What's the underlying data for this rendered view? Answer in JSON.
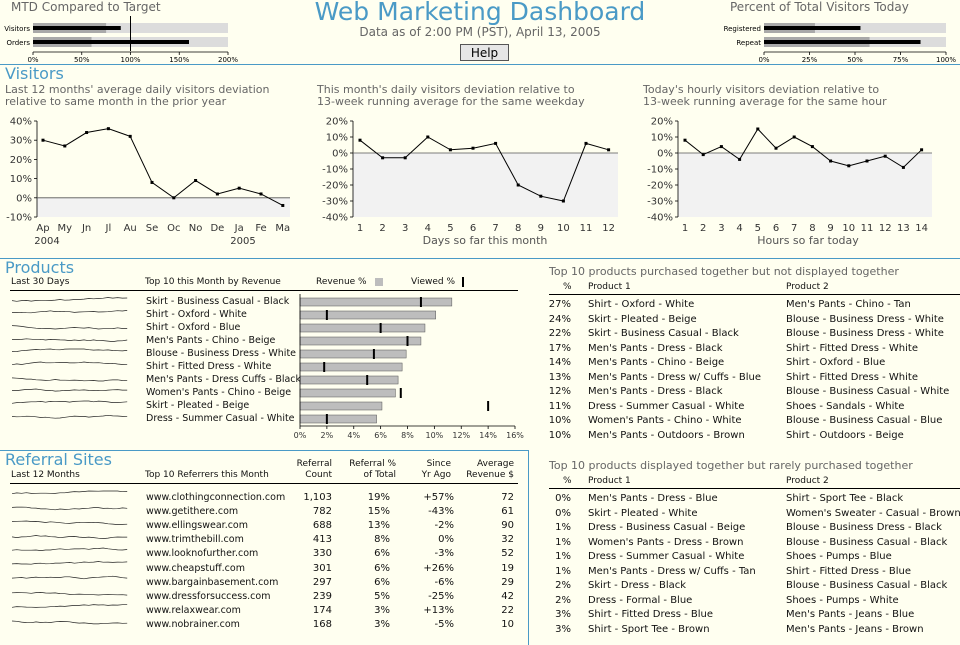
{
  "header": {
    "title": "Web Marketing Dashboard",
    "subtitle": "Data as of 2:00 PM (PST), April 13, 2005",
    "help_label": "Help"
  },
  "mtd": {
    "title": "MTD Compared to Target",
    "rows": [
      "Visitors",
      "Orders"
    ],
    "ticks": [
      "0%",
      "50%",
      "100%",
      "150%",
      "200%"
    ]
  },
  "pct_visitors": {
    "title": "Percent of Total Visitors Today",
    "rows": [
      "Registered",
      "Repeat"
    ],
    "ticks": [
      "0%",
      "25%",
      "50%",
      "75%",
      "100%"
    ]
  },
  "visitors": {
    "title": "Visitors",
    "chart1": {
      "desc_line1": "Last 12 months' average daily visitors deviation",
      "desc_line2": "relative to same month in the prior year",
      "years": [
        "2004",
        "2005"
      ]
    },
    "chart2": {
      "desc_line1": "This month's daily visitors deviation relative to",
      "desc_line2": "13-week running average for the same weekday",
      "xlabel": "Days so far this month"
    },
    "chart3": {
      "desc_line1": "Today's hourly visitors deviation relative to",
      "desc_line2": "13-week running average for the same hour",
      "xlabel": "Hours so far today"
    }
  },
  "products": {
    "title": "Products",
    "spark_header": "Last 30 Days",
    "list_header": "Top 10 this Month by Revenue",
    "legend_revenue": "Revenue %",
    "legend_viewed": "Viewed %",
    "ticks": [
      "0%",
      "2%",
      "4%",
      "6%",
      "8%",
      "10%",
      "12%",
      "14%",
      "16%"
    ]
  },
  "together_not_displayed": {
    "title": "Top 10 products purchased together but not displayed together",
    "col_pct": "%",
    "col_p1": "Product 1",
    "col_p2": "Product 2",
    "rows": [
      {
        "pct": "27%",
        "p1": "Shirt - Oxford - White",
        "p2": "Men's Pants - Chino - Tan"
      },
      {
        "pct": "24%",
        "p1": "Skirt - Pleated - Beige",
        "p2": "Blouse - Business Dress - White"
      },
      {
        "pct": "22%",
        "p1": "Skirt - Business Casual - Black",
        "p2": "Blouse - Business Dress - White"
      },
      {
        "pct": "17%",
        "p1": "Men's Pants - Dress - Black",
        "p2": "Shirt - Fitted Dress - White"
      },
      {
        "pct": "14%",
        "p1": "Men's Pants - Chino - Beige",
        "p2": "Shirt - Oxford - Blue"
      },
      {
        "pct": "13%",
        "p1": "Men's Pants - Dress w/ Cuffs - Blue",
        "p2": "Shirt - Fitted Dress - White"
      },
      {
        "pct": "12%",
        "p1": "Men's Pants - Dress - Black",
        "p2": "Blouse - Business Casual - White"
      },
      {
        "pct": "11%",
        "p1": "Dress - Summer Casual - White",
        "p2": "Shoes - Sandals - White"
      },
      {
        "pct": "10%",
        "p1": "Women's Pants - Chino - White",
        "p2": "Blouse - Business Casual - Blue"
      },
      {
        "pct": "10%",
        "p1": "Men's Pants - Outdoors - Brown",
        "p2": "Shirt - Outdoors - Beige"
      }
    ]
  },
  "displayed_rarely_purchased": {
    "title": "Top 10 products displayed together but rarely purchased together",
    "col_pct": "%",
    "col_p1": "Product 1",
    "col_p2": "Product 2",
    "rows": [
      {
        "pct": "0%",
        "p1": "Men's Pants - Dress - Blue",
        "p2": "Shirt - Sport Tee - Black"
      },
      {
        "pct": "0%",
        "p1": "Skirt - Pleated - White",
        "p2": "Women's Sweater - Casual - Brown"
      },
      {
        "pct": "1%",
        "p1": "Dress - Business Casual - Beige",
        "p2": "Blouse - Business Dress - Black"
      },
      {
        "pct": "1%",
        "p1": "Women's Pants - Dress - Brown",
        "p2": "Blouse - Business Casual - Black"
      },
      {
        "pct": "1%",
        "p1": "Dress - Summer Casual - White",
        "p2": "Shoes - Pumps - Blue"
      },
      {
        "pct": "1%",
        "p1": "Men's Pants - Dress w/ Cuffs - Tan",
        "p2": "Shirt - Fitted Dress - Blue"
      },
      {
        "pct": "2%",
        "p1": "Skirt - Dress - Black",
        "p2": "Blouse - Business Casual - Black"
      },
      {
        "pct": "2%",
        "p1": "Dress - Formal - Blue",
        "p2": "Shoes - Pumps - White"
      },
      {
        "pct": "3%",
        "p1": "Shirt - Fitted Dress - Blue",
        "p2": "Men's Pants - Jeans - Blue"
      },
      {
        "pct": "3%",
        "p1": "Shirt - Sport Tee - Brown",
        "p2": "Men's Pants - Jeans - Brown"
      }
    ]
  },
  "referrals": {
    "title": "Referral Sites",
    "spark_header": "Last 12 Months",
    "col_site": "Top 10 Referrers this Month",
    "col_count_1": "Referral",
    "col_count_2": "Count",
    "col_pct_1": "Referral %",
    "col_pct_2": "of Total",
    "col_since_1": "Since",
    "col_since_2": "Yr Ago",
    "col_rev_1": "Average",
    "col_rev_2": "Revenue $",
    "rows": [
      {
        "site": "www.clothingconnection.com",
        "count": "1,103",
        "pct": "19%",
        "since": "+57%",
        "rev": "72"
      },
      {
        "site": "www.getithere.com",
        "count": "782",
        "pct": "15%",
        "since": "-43%",
        "rev": "61"
      },
      {
        "site": "www.ellingswear.com",
        "count": "688",
        "pct": "13%",
        "since": "-2%",
        "rev": "90"
      },
      {
        "site": "www.trimthebill.com",
        "count": "413",
        "pct": "8%",
        "since": "0%",
        "rev": "32"
      },
      {
        "site": "www.looknofurther.com",
        "count": "330",
        "pct": "6%",
        "since": "-3%",
        "rev": "52"
      },
      {
        "site": "www.cheapstuff.com",
        "count": "301",
        "pct": "6%",
        "since": "+26%",
        "rev": "19"
      },
      {
        "site": "www.bargainbasement.com",
        "count": "297",
        "pct": "6%",
        "since": "-6%",
        "rev": "29"
      },
      {
        "site": "www.dressforsuccess.com",
        "count": "239",
        "pct": "5%",
        "since": "-25%",
        "rev": "42"
      },
      {
        "site": "www.relaxwear.com",
        "count": "174",
        "pct": "3%",
        "since": "+13%",
        "rev": "22"
      },
      {
        "site": "www.nobrainer.com",
        "count": "168",
        "pct": "3%",
        "since": "-5%",
        "rev": "10"
      }
    ]
  },
  "colors": {
    "accent": "#4a9ac6",
    "background": "#fffff0",
    "band": "#cccccc",
    "bar_gray": "#bdbdbd",
    "neg_fill": "#f2f2f2"
  },
  "chart_data": [
    {
      "type": "bullet",
      "categories": [
        "Visitors",
        "Orders"
      ],
      "values": [
        90,
        160
      ],
      "target": 100,
      "ranges": [
        [
          75,
          200
        ],
        [
          60,
          200
        ]
      ],
      "xlim": [
        0,
        200
      ]
    },
    {
      "type": "bullet",
      "categories": [
        "Registered",
        "Repeat"
      ],
      "values": [
        53,
        86
      ],
      "ranges": [
        [
          28,
          100
        ],
        [
          58,
          100
        ]
      ],
      "xlim": [
        0,
        100
      ]
    },
    {
      "type": "line",
      "categories": [
        "Ap",
        "My",
        "Jn",
        "Jl",
        "Au",
        "Se",
        "Oc",
        "No",
        "De",
        "Ja",
        "Fe",
        "Ma"
      ],
      "values": [
        30,
        27,
        34,
        36,
        32,
        8,
        0,
        9,
        2,
        5,
        2,
        -4
      ],
      "ylim": [
        -10,
        40
      ],
      "yticks": [
        "-10%",
        "0%",
        "10%",
        "20%",
        "30%",
        "40%"
      ]
    },
    {
      "type": "line",
      "x": [
        1,
        2,
        3,
        4,
        5,
        6,
        7,
        8,
        9,
        10,
        11,
        12
      ],
      "values": [
        8,
        -3,
        -3,
        10,
        2,
        3,
        6,
        -20,
        -27,
        -30,
        6,
        2
      ],
      "ylim": [
        -40,
        20
      ],
      "yticks": [
        "-40%",
        "-30%",
        "-20%",
        "-10%",
        "0%",
        "10%",
        "20%"
      ],
      "xlabel": "Days so far this month"
    },
    {
      "type": "line",
      "x": [
        1,
        2,
        3,
        4,
        5,
        6,
        7,
        8,
        9,
        10,
        11,
        12,
        13,
        14
      ],
      "values": [
        8,
        -1,
        4,
        -4,
        15,
        3,
        10,
        4,
        -5,
        -8,
        -5,
        -2,
        -9,
        2
      ],
      "ylim": [
        -40,
        20
      ],
      "yticks": [
        "-40%",
        "-30%",
        "-20%",
        "-10%",
        "0%",
        "10%",
        "20%"
      ],
      "xlabel": "Hours so far today"
    },
    {
      "type": "bar",
      "orientation": "horizontal",
      "categories": [
        "Skirt - Business Casual - Black",
        "Shirt - Oxford - White",
        "Shirt - Oxford - Blue",
        "Men's Pants - Chino - Beige",
        "Blouse - Business Dress - White",
        "Shirt - Fitted Dress - White",
        "Men's Pants - Dress Cuffs - Black",
        "Women's Pants - Chino - Beige",
        "Skirt - Pleated - Beige",
        "Dress - Summer Casual - White"
      ],
      "series": [
        {
          "name": "Revenue %",
          "values": [
            11.3,
            10.1,
            9.3,
            9.0,
            7.9,
            7.6,
            7.3,
            7.1,
            6.1,
            5.7
          ]
        },
        {
          "name": "Viewed %",
          "values": [
            9.0,
            2.0,
            6.0,
            8.0,
            5.5,
            1.8,
            5.0,
            7.5,
            14.0,
            2.0
          ]
        }
      ],
      "xlim": [
        0,
        16
      ]
    }
  ]
}
